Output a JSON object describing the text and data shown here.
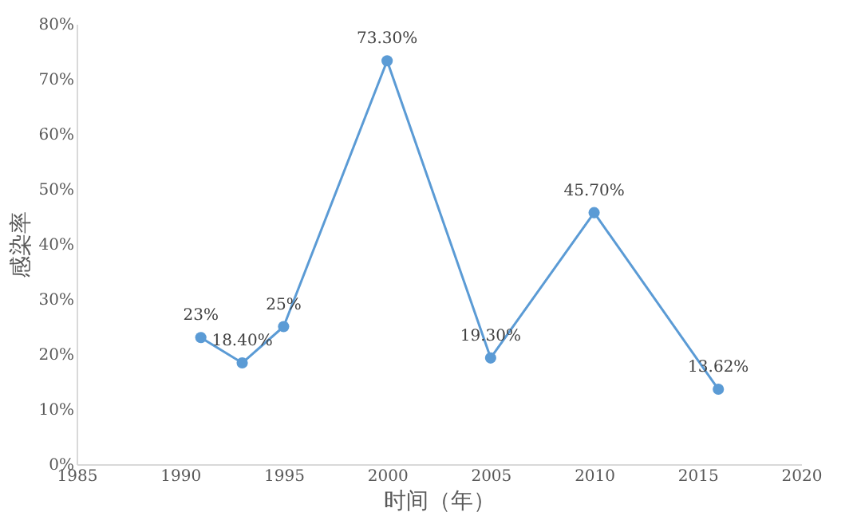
{
  "chart_data": {
    "type": "line",
    "xlabel": "时间（年）",
    "ylabel": "感染率",
    "x": [
      1991,
      1993,
      1995,
      2000,
      2005,
      2010,
      2016
    ],
    "series": [
      {
        "color": "#5b9bd5",
        "values": [
          23,
          18.4,
          25,
          73.3,
          19.3,
          45.7,
          13.62
        ],
        "value_labels": [
          "23%",
          "18.40%",
          "25%",
          "73.30%",
          "19.30%",
          "45.70%",
          "13.62%"
        ]
      }
    ],
    "xlim": [
      1985,
      2020
    ],
    "xticks": [
      1985,
      1990,
      1995,
      2000,
      2005,
      2010,
      2015,
      2020
    ],
    "ylim": [
      0,
      80
    ],
    "yticks": [
      {
        "value": 0,
        "label": "0%"
      },
      {
        "value": 10,
        "label": "10%"
      },
      {
        "value": 20,
        "label": "20%"
      },
      {
        "value": 30,
        "label": "30%"
      },
      {
        "value": 40,
        "label": "40%"
      },
      {
        "value": 50,
        "label": "50%"
      },
      {
        "value": 60,
        "label": "60%"
      },
      {
        "value": 70,
        "label": "70%"
      },
      {
        "value": 80,
        "label": "80%"
      }
    ],
    "grid": false,
    "marker": "circle",
    "line_style": "solid"
  }
}
